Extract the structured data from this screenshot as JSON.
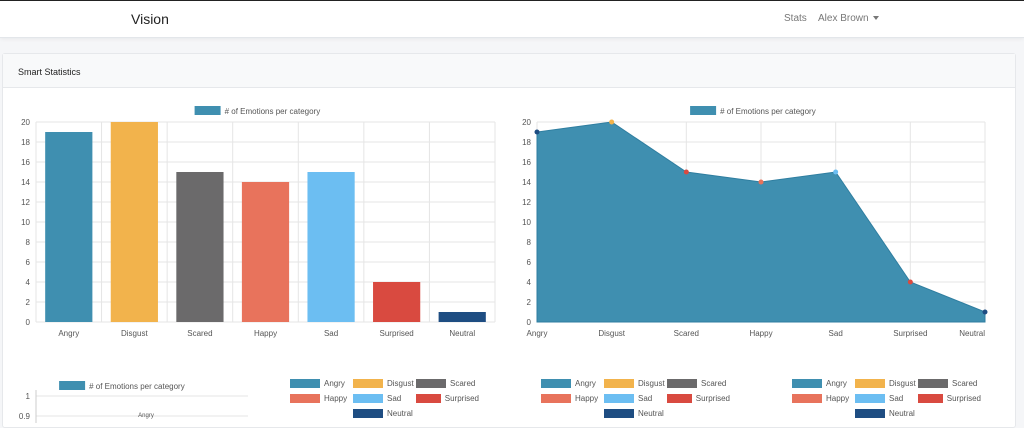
{
  "navbar": {
    "brand": "Vision",
    "stats_link": "Stats",
    "user_name": "Alex Brown"
  },
  "card": {
    "title": "Smart Statistics"
  },
  "legend": {
    "dataset_label": "# of Emotions per category"
  },
  "colors": {
    "accent": "#3f8fb0",
    "gridline": "#e5e5e5",
    "text": "#555555"
  },
  "chart_data": [
    {
      "type": "bar",
      "title": "",
      "legend": "# of Emotions per category",
      "categories": [
        "Angry",
        "Disgust",
        "Scared",
        "Happy",
        "Sad",
        "Surprised",
        "Neutral"
      ],
      "values": [
        19,
        20,
        15,
        14,
        15,
        4,
        1
      ],
      "colors": [
        "#3f8fb0",
        "#f2b34c",
        "#6b6a6b",
        "#e8735c",
        "#6cbef2",
        "#d94a40",
        "#1e4d82"
      ],
      "ylim": [
        0,
        20
      ],
      "yticks": [
        0,
        2,
        4,
        6,
        8,
        10,
        12,
        14,
        16,
        18,
        20
      ],
      "grid": true,
      "legend_position": "top"
    },
    {
      "type": "area",
      "title": "",
      "legend": "# of Emotions per category",
      "categories": [
        "Angry",
        "Disgust",
        "Scared",
        "Happy",
        "Sad",
        "Surprised",
        "Neutral"
      ],
      "values": [
        19,
        20,
        15,
        14,
        15,
        4,
        1
      ],
      "fill": "#3f8fb0",
      "point_colors": [
        "#1e4d82",
        "#f2b34c",
        "#d94a40",
        "#e8735c",
        "#6cbef2",
        "#d94a40",
        "#1e4d82"
      ],
      "ylim": [
        0,
        20
      ],
      "yticks": [
        0,
        2,
        4,
        6,
        8,
        10,
        12,
        14,
        16,
        18,
        20
      ],
      "grid": true,
      "legend_position": "top"
    },
    {
      "type": "bar",
      "title": "",
      "legend": "# of Emotions per category",
      "categories": [
        "Angry"
      ],
      "yticks_visible": [
        "1",
        "0.9"
      ],
      "grid": true,
      "legend_position": "top",
      "partially_visible": true
    },
    {
      "type": "pie",
      "legend_position": "top",
      "legend_items": [
        "Angry",
        "Disgust",
        "Scared",
        "Happy",
        "Sad",
        "Surprised",
        "Neutral"
      ],
      "legend_colors": [
        "#3f8fb0",
        "#f2b34c",
        "#6b6a6b",
        "#e8735c",
        "#6cbef2",
        "#d94a40",
        "#1e4d82"
      ],
      "partially_visible": true
    },
    {
      "type": "pie",
      "legend_position": "top",
      "legend_items": [
        "Angry",
        "Disgust",
        "Scared",
        "Happy",
        "Sad",
        "Surprised",
        "Neutral"
      ],
      "legend_colors": [
        "#3f8fb0",
        "#f2b34c",
        "#6b6a6b",
        "#e8735c",
        "#6cbef2",
        "#d94a40",
        "#1e4d82"
      ],
      "partially_visible": true
    },
    {
      "type": "pie",
      "legend_position": "top",
      "legend_items": [
        "Angry",
        "Disgust",
        "Scared",
        "Happy",
        "Sad",
        "Surprised",
        "Neutral"
      ],
      "legend_colors": [
        "#3f8fb0",
        "#f2b34c",
        "#6b6a6b",
        "#e8735c",
        "#6cbef2",
        "#d94a40",
        "#1e4d82"
      ],
      "partially_visible": true
    }
  ]
}
